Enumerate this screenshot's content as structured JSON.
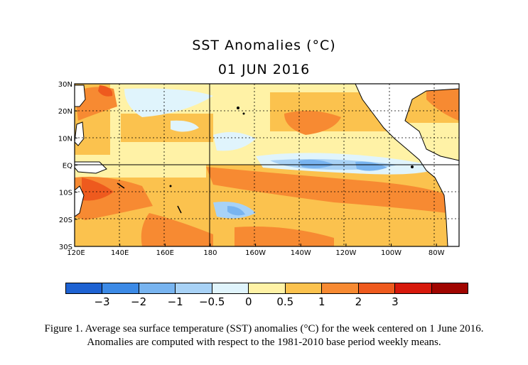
{
  "title": "SST Anomalies (°C)",
  "date": "01 JUN 2016",
  "map": {
    "lat_labels": [
      "30N",
      "20N",
      "10N",
      "EQ",
      "10S",
      "20S",
      "30S"
    ],
    "lon_labels": [
      "120E",
      "140E",
      "160E",
      "180",
      "160W",
      "140W",
      "120W",
      "100W",
      "80W"
    ],
    "lat_range": [
      -30,
      30
    ],
    "lon_range_east": [
      120,
      290
    ],
    "land_color": "#ffffff",
    "coast_color": "#000000"
  },
  "colorbar": {
    "colors": [
      "#1e62d2",
      "#3c8ae6",
      "#78b4f0",
      "#a8d2f6",
      "#e0f4fc",
      "#fff2a6",
      "#fbc24e",
      "#f78a32",
      "#ee5a1e",
      "#d7190c",
      "#a00500"
    ],
    "labels": [
      "−3",
      "−2",
      "−1",
      "−0.5",
      "0",
      "0.5",
      "1",
      "2",
      "3"
    ]
  },
  "caption": {
    "line1": "Figure 1. Average sea surface temperature (SST) anomalies (°C) for the week centered on 1 June 2016.",
    "line2": "Anomalies  are computed with respect to the 1981-2010 base period weekly means."
  }
}
